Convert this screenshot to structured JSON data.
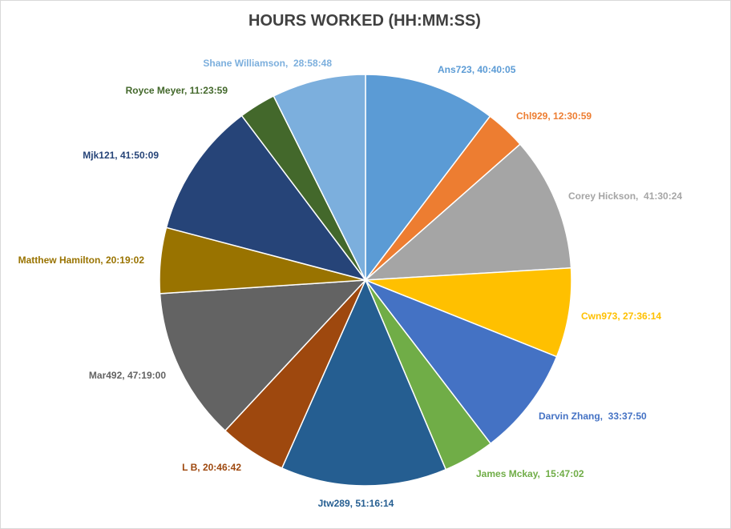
{
  "chart_data": {
    "type": "pie",
    "title": "HOURS WORKED (HH:MM:SS)",
    "legend": "none",
    "start_angle_deg": 0,
    "direction": "clockwise",
    "slices": [
      {
        "name": "Ans723",
        "value_text": "40:40:05",
        "hours": 40.668,
        "label": "Ans723, 40:40:05",
        "color": "#5B9BD5"
      },
      {
        "name": "Chl929",
        "value_text": "12:30:59",
        "hours": 12.516,
        "label": "Chl929, 12:30:59",
        "color": "#ED7D31"
      },
      {
        "name": "Corey Hickson",
        "value_text": "41:30:24",
        "hours": 41.507,
        "label": "Corey Hickson,  41:30:24",
        "color": "#A5A5A5"
      },
      {
        "name": "Cwn973",
        "value_text": "27:36:14",
        "hours": 27.604,
        "label": "Cwn973, 27:36:14",
        "color": "#FFC000"
      },
      {
        "name": "Darvin Zhang",
        "value_text": "33:37:50",
        "hours": 33.631,
        "label": "Darvin Zhang,  33:37:50",
        "color": "#4472C4"
      },
      {
        "name": "James Mckay",
        "value_text": "15:47:02",
        "hours": 15.784,
        "label": "James Mckay,  15:47:02",
        "color": "#70AD47"
      },
      {
        "name": "Jtw289",
        "value_text": "51:16:14",
        "hours": 51.271,
        "label": "Jtw289, 51:16:14",
        "color": "#255E91"
      },
      {
        "name": "L B",
        "value_text": "20:46:42",
        "hours": 20.778,
        "label": "L B, 20:46:42",
        "color": "#9E480E"
      },
      {
        "name": "Mar492",
        "value_text": "47:19:00",
        "hours": 47.317,
        "label": "Mar492, 47:19:00",
        "color": "#636363"
      },
      {
        "name": "Matthew Hamilton",
        "value_text": "20:19:02",
        "hours": 20.317,
        "label": "Matthew Hamilton, 20:19:02",
        "color": "#997300"
      },
      {
        "name": "Mjk121",
        "value_text": "41:50:09",
        "hours": 41.836,
        "label": "Mjk121, 41:50:09",
        "color": "#264478"
      },
      {
        "name": "Royce Meyer",
        "value_text": "11:23:59",
        "hours": 11.4,
        "label": "Royce Meyer, 11:23:59",
        "color": "#43682B"
      },
      {
        "name": "Shane Williamson",
        "value_text": "28:58:48",
        "hours": 28.98,
        "label": "Shane Williamson,  28:58:48",
        "color": "#7CAFDD"
      }
    ]
  }
}
